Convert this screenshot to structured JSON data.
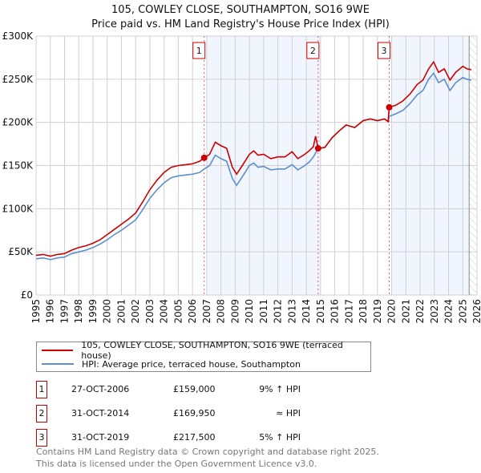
{
  "chart_data": {
    "type": "line",
    "title": "105, COWLEY CLOSE, SOUTHAMPTON, SO16 9WE",
    "subtitle": "Price paid vs. HM Land Registry's House Price Index (HPI)",
    "xlim": [
      1995,
      2026
    ],
    "ylim": [
      0,
      300000
    ],
    "yticks": [
      {
        "v": 0,
        "l": "£0"
      },
      {
        "v": 50000,
        "l": "£50K"
      },
      {
        "v": 100000,
        "l": "£100K"
      },
      {
        "v": 150000,
        "l": "£150K"
      },
      {
        "v": 200000,
        "l": "£200K"
      },
      {
        "v": 250000,
        "l": "£250K"
      },
      {
        "v": 300000,
        "l": "£300K"
      }
    ],
    "xticks": [
      "1995",
      "1996",
      "1997",
      "1998",
      "1999",
      "2000",
      "2001",
      "2002",
      "2003",
      "2004",
      "2005",
      "2006",
      "2007",
      "2008",
      "2009",
      "2010",
      "2011",
      "2012",
      "2013",
      "2014",
      "2015",
      "2016",
      "2017",
      "2018",
      "2019",
      "2020",
      "2021",
      "2022",
      "2023",
      "2024",
      "2025",
      "2026"
    ],
    "grid": true,
    "shaded_ranges": [
      [
        2007,
        2015
      ],
      [
        2020,
        2025.45
      ]
    ],
    "hatched_from": 2025.45,
    "series": [
      {
        "name": "105, COWLEY CLOSE, SOUTHAMPTON, SO16 9WE (terraced house)",
        "color": "#cc0000",
        "x": [
          1995,
          1995.5,
          1996,
          1996.5,
          1997,
          1997.5,
          1998,
          1998.5,
          1999,
          1999.5,
          2000,
          2000.5,
          2001,
          2001.5,
          2002,
          2002.5,
          2003,
          2003.5,
          2004,
          2004.5,
          2005,
          2005.5,
          2006,
          2006.5,
          2006.82,
          2007.2,
          2007.6,
          2008,
          2008.4,
          2008.8,
          2009.1,
          2009.5,
          2010,
          2010.3,
          2010.6,
          2011,
          2011.5,
          2012,
          2012.5,
          2013,
          2013.4,
          2013.8,
          2014.2,
          2014.5,
          2014.65,
          2014.83,
          2015.3,
          2015.8,
          2016.3,
          2016.8,
          2017.4,
          2018,
          2018.5,
          2019,
          2019.5,
          2019.75,
          2019.83,
          2020.3,
          2020.8,
          2021.3,
          2021.8,
          2022.2,
          2022.6,
          2022.95,
          2023.3,
          2023.7,
          2024.1,
          2024.5,
          2025,
          2025.3,
          2025.6
        ],
        "y": [
          46000,
          47000,
          45000,
          47000,
          48000,
          52000,
          55000,
          57000,
          60000,
          64000,
          70000,
          76000,
          82000,
          88000,
          95000,
          108000,
          122000,
          133000,
          142000,
          148000,
          150000,
          151000,
          152000,
          155000,
          159000,
          163000,
          177000,
          173000,
          170000,
          148000,
          140000,
          150000,
          163000,
          167000,
          162000,
          163000,
          158000,
          160000,
          160000,
          166000,
          158000,
          162000,
          167000,
          172000,
          184000,
          169950,
          171000,
          182000,
          190000,
          197000,
          194000,
          202000,
          204000,
          202000,
          204000,
          201000,
          217500,
          220000,
          225000,
          233000,
          244000,
          249000,
          262000,
          270000,
          258000,
          262000,
          249000,
          258000,
          265000,
          262000,
          261000
        ]
      },
      {
        "name": "HPI: Average price, terraced house, Southampton",
        "color": "#5b8fd0",
        "x": [
          1995,
          1995.5,
          1996,
          1996.5,
          1997,
          1997.5,
          1998,
          1998.5,
          1999,
          1999.5,
          2000,
          2000.5,
          2001,
          2001.5,
          2002,
          2002.5,
          2003,
          2003.5,
          2004,
          2004.5,
          2005,
          2005.5,
          2006,
          2006.5,
          2006.82,
          2007.2,
          2007.6,
          2008,
          2008.4,
          2008.8,
          2009.1,
          2009.5,
          2010,
          2010.3,
          2010.6,
          2011,
          2011.5,
          2012,
          2012.5,
          2013,
          2013.4,
          2013.8,
          2014.2,
          2014.5,
          2014.83,
          2015.3,
          2015.8,
          2016.3,
          2016.8,
          2017.4,
          2018,
          2018.5,
          2019,
          2019.5,
          2019.75,
          2019.83,
          2020.3,
          2020.8,
          2021.3,
          2021.8,
          2022.2,
          2022.6,
          2022.95,
          2023.3,
          2023.7,
          2024.1,
          2024.5,
          2025,
          2025.3,
          2025.6
        ],
        "y": [
          42000,
          43000,
          41000,
          43000,
          44000,
          48000,
          50000,
          52000,
          55000,
          59000,
          64000,
          70000,
          75000,
          81000,
          87000,
          99000,
          112000,
          122000,
          130000,
          136000,
          138000,
          139000,
          140000,
          142000,
          146000,
          150000,
          162000,
          158000,
          155000,
          135000,
          127000,
          137000,
          150000,
          153000,
          148000,
          149000,
          145000,
          146000,
          146000,
          151000,
          145000,
          149000,
          154000,
          160000,
          169950,
          171000,
          182000,
          190000,
          197000,
          194000,
          202000,
          204000,
          202000,
          204000,
          201000,
          207000,
          210000,
          214000,
          222000,
          232000,
          237000,
          250000,
          257000,
          246000,
          250000,
          237000,
          246000,
          252000,
          250000,
          249000
        ]
      }
    ],
    "sales": [
      {
        "n": "1",
        "x": 2006.82,
        "y": 159000
      },
      {
        "n": "2",
        "x": 2014.83,
        "y": 169950
      },
      {
        "n": "3",
        "x": 2019.83,
        "y": 217500
      }
    ]
  },
  "legend": {
    "red": "105, COWLEY CLOSE, SOUTHAMPTON, SO16 9WE (terraced house)",
    "blue": "HPI: Average price, terraced house, Southampton"
  },
  "table": [
    {
      "n": "1",
      "date": "27-OCT-2006",
      "price": "£159,000",
      "hpi": "9% ↑ HPI"
    },
    {
      "n": "2",
      "date": "31-OCT-2014",
      "price": "£169,950",
      "hpi": "≈ HPI"
    },
    {
      "n": "3",
      "date": "31-OCT-2019",
      "price": "£217,500",
      "hpi": "5% ↑ HPI"
    }
  ],
  "footer": {
    "line1": "Contains HM Land Registry data © Crown copyright and database right 2025.",
    "line2": "This data is licensed under the Open Government Licence v3.0."
  }
}
